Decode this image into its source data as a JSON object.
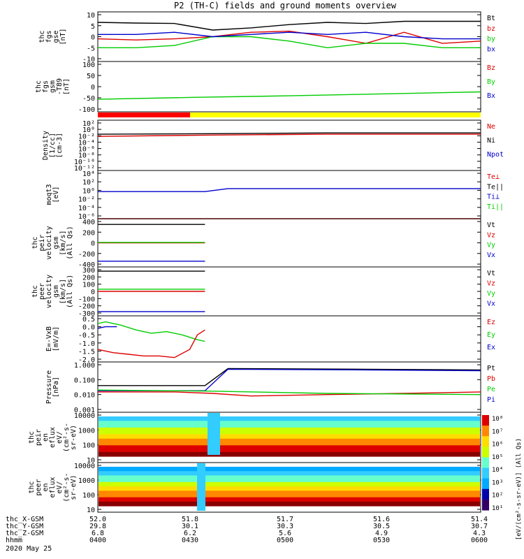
{
  "chart_data": {
    "type": "line",
    "title": "P2 (TH-C) fields and ground moments overview",
    "x_axis": {
      "range_hhmm": [
        "04:00",
        "06:00"
      ],
      "rows": [
        {
          "label": "thc_X-GSM",
          "values": [
            "52.0",
            "51.8",
            "51.7",
            "51.6",
            "51.4"
          ]
        },
        {
          "label": "thc_Y-GSM",
          "values": [
            "29.8",
            "30.1",
            "30.3",
            "30.5",
            "30.7"
          ]
        },
        {
          "label": "thc_Z-GSM",
          "values": [
            "6.8",
            "6.2",
            "5.6",
            "4.9",
            "4.3"
          ]
        },
        {
          "label": "hhmm",
          "values": [
            "0400",
            "0430",
            "0500",
            "0530",
            "0600"
          ]
        }
      ],
      "date": "2020 May 25"
    },
    "colors": {
      "black": "#000000",
      "red": "#dd0000",
      "green": "#00cc00",
      "blue": "#0000cc",
      "yellow": "#ffff00"
    },
    "panels": [
      {
        "ylabel": [
          "thc",
          "fgs",
          "gse",
          "[nT]"
        ],
        "ylim": [
          -10,
          10
        ],
        "ticks": [
          "10",
          "5",
          "0",
          "-5",
          "-10"
        ],
        "legend": [
          {
            "name": "Bt",
            "color": "black"
          },
          {
            "name": "bz",
            "color": "red"
          },
          {
            "name": "by",
            "color": "green"
          },
          {
            "name": "bx",
            "color": "blue"
          }
        ],
        "series": [
          {
            "name": "Bt",
            "color": "black",
            "x": [
              0,
              0.1,
              0.2,
              0.3,
              0.4,
              0.5,
              0.6,
              0.7,
              0.8,
              0.9,
              1
            ],
            "y": [
              6.5,
              6.2,
              6,
              3,
              4,
              5.5,
              6.5,
              6,
              7,
              7,
              7
            ]
          },
          {
            "name": "bz",
            "color": "red",
            "x": [
              0,
              0.1,
              0.2,
              0.3,
              0.4,
              0.5,
              0.6,
              0.7,
              0.8,
              0.9,
              1
            ],
            "y": [
              -1,
              -1.5,
              -1,
              0,
              2,
              2.5,
              0,
              -3,
              2,
              -3,
              -2
            ]
          },
          {
            "name": "by",
            "color": "green",
            "x": [
              0,
              0.1,
              0.2,
              0.3,
              0.4,
              0.5,
              0.6,
              0.7,
              0.8,
              0.9,
              1
            ],
            "y": [
              -5,
              -5,
              -4,
              0,
              0,
              -2,
              -5,
              -3,
              -3,
              -5,
              -5
            ]
          },
          {
            "name": "bx",
            "color": "blue",
            "x": [
              0,
              0.1,
              0.2,
              0.3,
              0.4,
              0.5,
              0.6,
              0.7,
              0.8,
              0.9,
              1
            ],
            "y": [
              1,
              1,
              2,
              0,
              1,
              2,
              1,
              2,
              0,
              -1,
              -1
            ]
          }
        ]
      },
      {
        "ylabel": [
          "thc",
          "fgs",
          "gsm",
          "-T89",
          "[nT]"
        ],
        "ylim": [
          -130,
          100
        ],
        "ticks": [
          "100",
          "50",
          "0",
          "-50",
          "-100"
        ],
        "legend": [
          {
            "name": "Bz",
            "color": "red"
          },
          {
            "name": "By",
            "color": "green"
          },
          {
            "name": "Bx",
            "color": "blue"
          }
        ],
        "series": [
          {
            "name": "By",
            "color": "green",
            "x": [
              0,
              0.25,
              0.5,
              0.75,
              1
            ],
            "y": [
              -80,
              -70,
              -62,
              -52,
              -42
            ]
          }
        ]
      },
      {
        "ylabel": [
          "Density",
          "[1/cc]",
          "[cm-3]"
        ],
        "ylim_log": [
          -8,
          2
        ],
        "ticks": [
          "10²",
          "10⁰",
          "10⁻²",
          "10⁻⁴",
          "10⁻⁶",
          "10⁻⁸",
          "10⁻¹⁰",
          "10⁻¹²"
        ],
        "legend": [
          {
            "name": "Ne",
            "color": "red"
          },
          {
            "name": "Ni",
            "color": "black"
          },
          {
            "name": "Npot",
            "color": "blue"
          }
        ],
        "series": [
          {
            "name": "Ni",
            "color": "black",
            "x": [
              0,
              0.3,
              0.6,
              1
            ],
            "y": [
              0.3,
              0.4,
              0.6,
              0.6
            ]
          },
          {
            "name": "Ne",
            "color": "red",
            "x": [
              0,
              0.3,
              0.6,
              1
            ],
            "y": [
              0.1,
              0.2,
              0.3,
              0.3
            ]
          }
        ]
      },
      {
        "ylabel": [
          "moqt3",
          "[eV]"
        ],
        "ylim_log": [
          -6,
          4
        ],
        "ticks": [
          "10⁴",
          "10²",
          "10⁰",
          "10⁻²",
          "10⁻⁴",
          "10⁻⁶"
        ],
        "legend": [
          {
            "name": "Te⊥",
            "color": "red"
          },
          {
            "name": "Te||",
            "color": "black"
          },
          {
            "name": "Ti⊥",
            "color": "blue"
          },
          {
            "name": "Ti||",
            "color": "green"
          }
        ],
        "series": [
          {
            "name": "Ti⊥",
            "color": "blue",
            "x": [
              0,
              0.28,
              0.34,
              1
            ],
            "y": [
              0.5,
              0.5,
              2.6,
              2.6
            ]
          },
          {
            "name": "Te⊥",
            "color": "red",
            "x": [
              0,
              1
            ],
            "y": [
              0.0,
              0.0
            ]
          }
        ]
      },
      {
        "ylabel": [
          "thc",
          "peir",
          "velocity",
          "gsm",
          "[km/s]",
          "(All Qs)"
        ],
        "ylim": [
          -400,
          400
        ],
        "ticks": [
          "400",
          "200",
          "0",
          "-200",
          "-400"
        ],
        "legend": [
          {
            "name": "Vt",
            "color": "black"
          },
          {
            "name": "Vz",
            "color": "red"
          },
          {
            "name": "Vy",
            "color": "green"
          },
          {
            "name": "Vx",
            "color": "blue"
          }
        ],
        "series": [
          {
            "name": "Vt",
            "color": "black",
            "x": [
              0,
              0.28
            ],
            "y": [
              345,
              345
            ]
          },
          {
            "name": "Vz",
            "color": "red",
            "x": [
              0,
              0.28
            ],
            "y": [
              0,
              0
            ]
          },
          {
            "name": "Vy",
            "color": "green",
            "x": [
              0,
              0.28
            ],
            "y": [
              8,
              8
            ]
          },
          {
            "name": "Vx",
            "color": "blue",
            "x": [
              0,
              0.28
            ],
            "y": [
              -345,
              -345
            ]
          }
        ]
      },
      {
        "ylabel": [
          "thc",
          "peer",
          "velocity",
          "gsm",
          "[km/s]",
          "(All Qs)"
        ],
        "ylim": [
          -300,
          300
        ],
        "ticks": [
          "300",
          "200",
          "100",
          "0",
          "-100",
          "-200",
          "-300"
        ],
        "legend": [
          {
            "name": "Vt",
            "color": "black"
          },
          {
            "name": "Vz",
            "color": "red"
          },
          {
            "name": "Vy",
            "color": "green"
          },
          {
            "name": "Vx",
            "color": "blue"
          }
        ],
        "series": [
          {
            "name": "Vt",
            "color": "black",
            "x": [
              0,
              0.28
            ],
            "y": [
              280,
              280
            ]
          },
          {
            "name": "Vz",
            "color": "red",
            "x": [
              0,
              0.28
            ],
            "y": [
              0,
              0
            ]
          },
          {
            "name": "Vy",
            "color": "green",
            "x": [
              0,
              0.28
            ],
            "y": [
              30,
              30
            ]
          },
          {
            "name": "Vx",
            "color": "blue",
            "x": [
              0,
              0.28
            ],
            "y": [
              -280,
              -280
            ]
          }
        ]
      },
      {
        "ylabel": [
          "E=-VxB",
          "[mV/m]"
        ],
        "ylim": [
          -2.0,
          0.5
        ],
        "ticks": [
          "0.5",
          "0.0",
          "-0.5",
          "-1.0",
          "-1.5",
          "-2.0"
        ],
        "legend": [
          {
            "name": "Ez",
            "color": "red"
          },
          {
            "name": "Ey",
            "color": "green"
          },
          {
            "name": "Ex",
            "color": "blue"
          }
        ],
        "series": [
          {
            "name": "Ey",
            "color": "green",
            "x": [
              0,
              0.02,
              0.06,
              0.1,
              0.14,
              0.18,
              0.22,
              0.26,
              0.28
            ],
            "y": [
              0.2,
              0.3,
              0.1,
              -0.2,
              -0.4,
              -0.3,
              -0.5,
              -0.8,
              -0.9
            ]
          },
          {
            "name": "Ez",
            "color": "red",
            "x": [
              0,
              0.04,
              0.08,
              0.12,
              0.16,
              0.2,
              0.24,
              0.26,
              0.28
            ],
            "y": [
              -1.4,
              -1.6,
              -1.7,
              -1.8,
              -1.8,
              -1.9,
              -1.4,
              -0.5,
              -0.2
            ]
          },
          {
            "name": "Ex",
            "color": "blue",
            "x": [
              0,
              0.02,
              0.05
            ],
            "y": [
              -0.1,
              0.0,
              0.0
            ]
          }
        ]
      },
      {
        "ylabel": [
          "Pressure",
          "[nPa]"
        ],
        "ylim_log": [
          -3,
          0
        ],
        "ticks": [
          "1.000",
          "0.100",
          "0.010",
          "0.001"
        ],
        "legend": [
          {
            "name": "Pt",
            "color": "black"
          },
          {
            "name": "Pb",
            "color": "red"
          },
          {
            "name": "Pe",
            "color": "green"
          },
          {
            "name": "Pi",
            "color": "blue"
          }
        ],
        "series": [
          {
            "name": "Pt",
            "color": "black",
            "x": [
              0,
              0.28,
              0.34,
              0.7,
              1
            ],
            "y": [
              0.04,
              0.04,
              0.55,
              0.5,
              0.45
            ]
          },
          {
            "name": "Pi",
            "color": "blue",
            "x": [
              0,
              0.28,
              0.34,
              0.7,
              1
            ],
            "y": [
              0.018,
              0.018,
              0.5,
              0.45,
              0.4
            ]
          },
          {
            "name": "Pb",
            "color": "red",
            "x": [
              0,
              0.2,
              0.3,
              0.4,
              0.6,
              0.8,
              1
            ],
            "y": [
              0.015,
              0.015,
              0.012,
              0.008,
              0.01,
              0.012,
              0.015
            ]
          },
          {
            "name": "Pe",
            "color": "green",
            "x": [
              0,
              0.3,
              0.6,
              1
            ],
            "y": [
              0.02,
              0.017,
              0.012,
              0.01
            ]
          }
        ]
      },
      {
        "type": "heatmap",
        "ylabel": [
          "thc",
          "peir",
          "en",
          "eflux",
          "eV/",
          "(cm²-s-",
          "sr-eV)"
        ],
        "ylim_log": [
          0.5,
          4.2
        ],
        "ticks": [
          "10000",
          "1000",
          "100",
          "10"
        ]
      },
      {
        "type": "heatmap",
        "ylabel": [
          "thc",
          "peer",
          "en",
          "eflux",
          "eV/",
          "(cm²-s-",
          "sr-eV)"
        ],
        "ylim_log": [
          0.5,
          4.2
        ],
        "ticks": [
          "10000",
          "1000",
          "100",
          "10"
        ]
      }
    ],
    "colorbar": {
      "label": "[eV/(cm²-s-sr-eV)] (All Qs)",
      "ticks": [
        "10⁸",
        "10⁷",
        "10⁶",
        "10⁵",
        "10⁴",
        "10³",
        "10²",
        "10¹"
      ]
    }
  }
}
